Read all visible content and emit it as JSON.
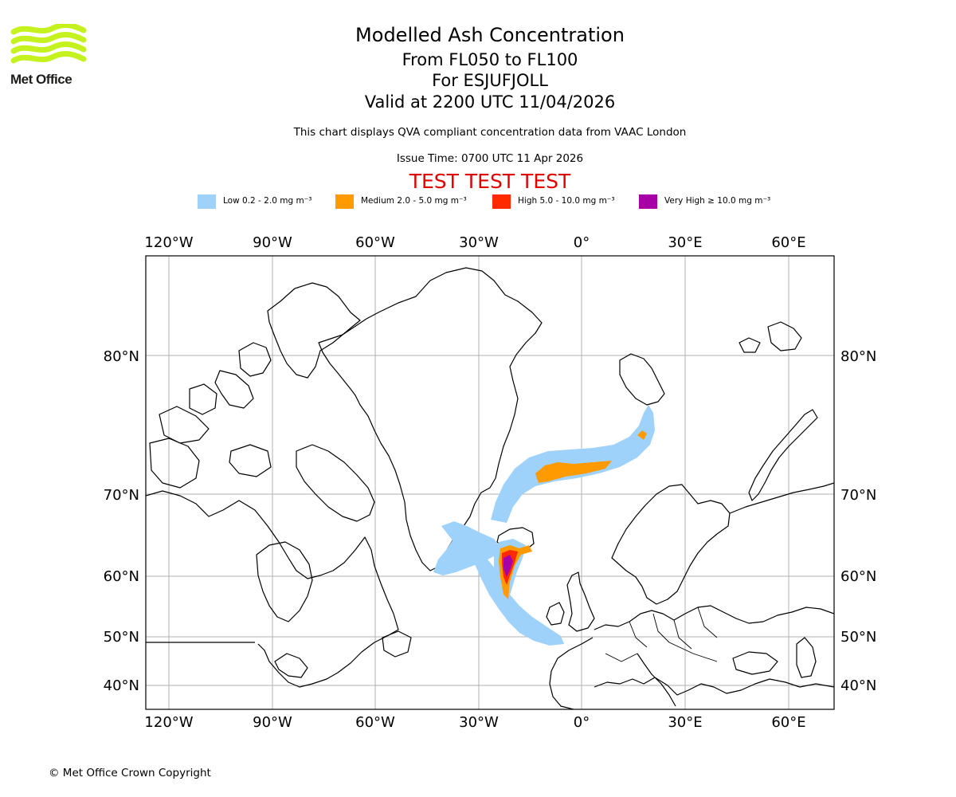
{
  "logo": {
    "text": "Met Office",
    "color": "#c5f21f"
  },
  "header": {
    "title": "Modelled Ash Concentration",
    "flight_levels": "From FL050 to FL100",
    "volcano": "For ESJUFJOLL",
    "valid": "Valid at 2200 UTC 11/04/2026",
    "subtitle": "This chart displays QVA compliant concentration data from VAAC London",
    "issue_time": "Issue Time: 0700 UTC 11 Apr 2026",
    "test_banner": "TEST TEST TEST"
  },
  "legend": [
    {
      "label": "Low 0.2 - 2.0 mg m⁻³",
      "color": "#9fd2fa"
    },
    {
      "label": "Medium 2.0 - 5.0 mg m⁻³",
      "color": "#ff9a00"
    },
    {
      "label": "High 5.0 - 10.0 mg m⁻³",
      "color": "#ff2a00"
    },
    {
      "label": "Very High ≥ 10.0 mg m⁻³",
      "color": "#a600a6"
    }
  ],
  "map": {
    "longitude_labels": [
      "120°W",
      "90°W",
      "60°W",
      "30°W",
      "0°",
      "30°E",
      "60°E"
    ],
    "latitude_labels": [
      "80°N",
      "70°N",
      "60°N",
      "50°N",
      "40°N"
    ]
  },
  "footer": {
    "copyright": "© Met Office Crown Copyright"
  }
}
